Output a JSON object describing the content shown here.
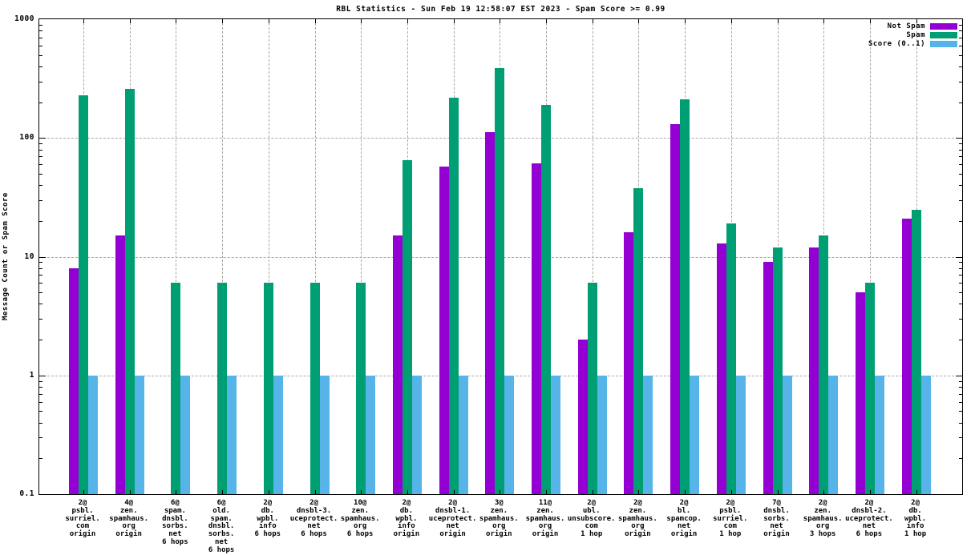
{
  "title": "RBL Statistics - Sun Feb 19 12:58:07 EST 2023 - Spam Score >= 0.99",
  "y_axis_label": "Message Count or Spam Score",
  "y_tick_labels": [
    "1000",
    "100",
    "10",
    "1",
    "0.1"
  ],
  "colors": {
    "not_spam": "#9400d3",
    "spam": "#009e73",
    "score": "#56b4e9",
    "grid": "#a8a8a8",
    "axis": "#000000",
    "background": "#ffffff"
  },
  "legend": [
    {
      "label": "Not Spam",
      "color_key": "not_spam"
    },
    {
      "label": "Spam",
      "color_key": "spam"
    },
    {
      "label": "Score (0..1)",
      "color_key": "score"
    }
  ],
  "chart_data": {
    "type": "bar",
    "y_scale": "log",
    "ylim": [
      0.1,
      1000
    ],
    "grid": true,
    "legend_position": "top-right",
    "title": "RBL Statistics - Sun Feb 19 12:58:07 EST 2023 - Spam Score >= 0.99",
    "xlabel": "",
    "ylabel": "Message Count or Spam Score",
    "categories": [
      "2@ psbl.surriel.com origin",
      "4@ zen.spamhaus.org origin",
      "6@ spam.dnsbl.sorbs.net 6 hops",
      "6@ old.spam.dnsbl.sorbs.net 6 hops",
      "2@ db.wpbl.info 6 hops",
      "2@ dnsbl-3.uceprotect.net 6 hops",
      "10@ zen.spamhaus.org 6 hops",
      "2@ db.wpbl.info origin",
      "2@ dnsbl-1.uceprotect.net origin",
      "3@ zen.spamhaus.org origin",
      "11@ zen.spamhaus.org origin",
      "2@ ubl.unsubscore.com 1 hop",
      "2@ zen.spamhaus.org origin",
      "2@ bl.spamcop.net origin",
      "2@ psbl.surriel.com 1 hop",
      "7@ dnsbl.sorbs.net origin",
      "2@ zen.spamhaus.org 3 hops",
      "2@ dnsbl-2.uceprotect.net 6 hops",
      "2@ db.wpbl.info 1 hop"
    ],
    "category_label_lines": [
      [
        "2@",
        "psbl.",
        "surriel.",
        "com",
        "origin"
      ],
      [
        "4@",
        "zen.",
        "spamhaus.",
        "org",
        "origin"
      ],
      [
        "6@",
        "spam.",
        "dnsbl.",
        "sorbs.",
        "net",
        "6 hops"
      ],
      [
        "6@",
        "old.",
        "spam.",
        "dnsbl.",
        "sorbs.",
        "net",
        "6 hops"
      ],
      [
        "2@",
        "db.",
        "wpbl.",
        "info",
        "6 hops"
      ],
      [
        "2@",
        "dnsbl-3.",
        "uceprotect.",
        "net",
        "6 hops"
      ],
      [
        "10@",
        "zen.",
        "spamhaus.",
        "org",
        "6 hops"
      ],
      [
        "2@",
        "db.",
        "wpbl.",
        "info",
        "origin"
      ],
      [
        "2@",
        "dnsbl-1.",
        "uceprotect.",
        "net",
        "origin"
      ],
      [
        "3@",
        "zen.",
        "spamhaus.",
        "org",
        "origin"
      ],
      [
        "11@",
        "zen.",
        "spamhaus.",
        "org",
        "origin"
      ],
      [
        "2@",
        "ubl.",
        "unsubscore.",
        "com",
        "1 hop"
      ],
      [
        "2@",
        "zen.",
        "spamhaus.",
        "org",
        "origin"
      ],
      [
        "2@",
        "bl.",
        "spamcop.",
        "net",
        "origin"
      ],
      [
        "2@",
        "psbl.",
        "surriel.",
        "com",
        "1 hop"
      ],
      [
        "7@",
        "dnsbl.",
        "sorbs.",
        "net",
        "origin"
      ],
      [
        "2@",
        "zen.",
        "spamhaus.",
        "org",
        "3 hops"
      ],
      [
        "2@",
        "dnsbl-2.",
        "uceprotect.",
        "net",
        "6 hops"
      ],
      [
        "2@",
        "db.",
        "wpbl.",
        "info",
        "1 hop"
      ]
    ],
    "series": [
      {
        "name": "Not Spam",
        "color_key": "not_spam",
        "values": [
          8,
          15,
          0,
          0,
          0,
          0,
          0,
          15,
          57,
          112,
          61,
          2,
          16,
          130,
          13,
          9,
          12,
          5,
          21
        ]
      },
      {
        "name": "Spam",
        "color_key": "spam",
        "values": [
          230,
          260,
          6,
          6,
          6,
          6,
          6,
          65,
          220,
          390,
          190,
          6,
          38,
          210,
          19,
          12,
          15,
          6,
          25
        ]
      },
      {
        "name": "Score (0..1)",
        "color_key": "score",
        "values": [
          1,
          1,
          1,
          1,
          1,
          1,
          1,
          1,
          1,
          1,
          1,
          1,
          1,
          1,
          1,
          1,
          1,
          1,
          1
        ]
      }
    ]
  }
}
